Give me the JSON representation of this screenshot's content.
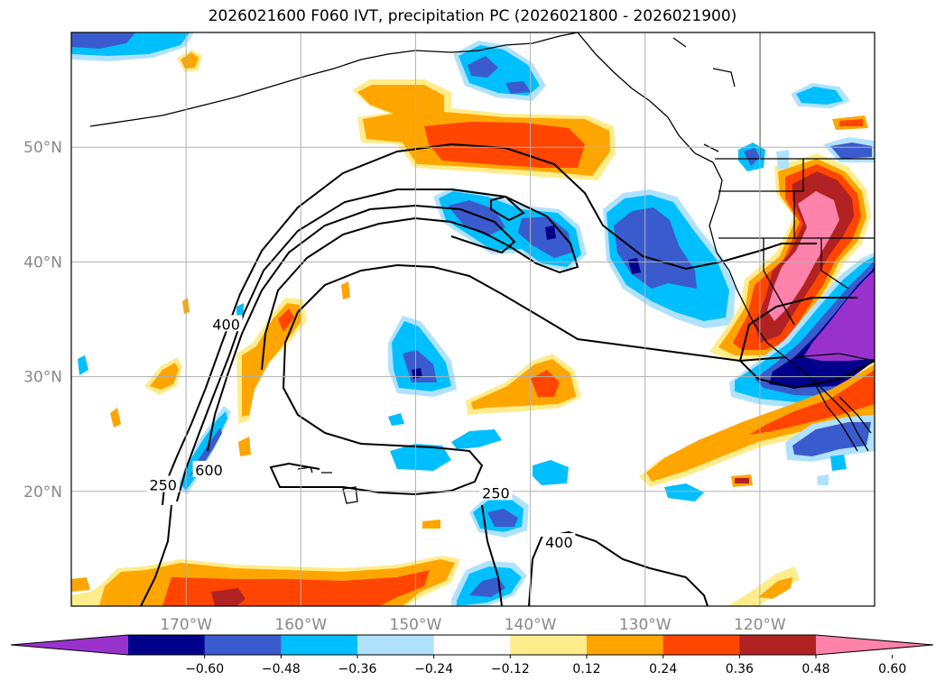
{
  "title": "2026021600 F060 IVT, precipitation PC (2026021800 - 2026021900)",
  "map": {
    "lon_range": [
      -180,
      -110
    ],
    "lat_range": [
      10,
      60
    ],
    "lat_ticks": [
      {
        "value": 50,
        "label": "50°N"
      },
      {
        "value": 40,
        "label": "40°N"
      },
      {
        "value": 30,
        "label": "30°N"
      },
      {
        "value": 20,
        "label": "20°N"
      }
    ],
    "lon_ticks": [
      {
        "value": -170,
        "label": "170°W"
      },
      {
        "value": -160,
        "label": "160°W"
      },
      {
        "value": -150,
        "label": "150°W"
      },
      {
        "value": -140,
        "label": "140°W"
      },
      {
        "value": -130,
        "label": "130°W"
      },
      {
        "value": -120,
        "label": "120°W"
      }
    ],
    "grid": true,
    "contour_labels": [
      {
        "text": "400",
        "lon": -166.5,
        "lat": 34.5
      },
      {
        "text": "250",
        "lon": -172.0,
        "lat": 20.5
      },
      {
        "text": "600",
        "lon": -168.0,
        "lat": 21.8
      },
      {
        "text": "250",
        "lon": -143.0,
        "lat": 19.8
      },
      {
        "text": "400",
        "lon": -137.5,
        "lat": 15.5
      }
    ]
  },
  "colorbar": {
    "colors": [
      "#9932cc",
      "#00008b",
      "#3a5bcd",
      "#00bfff",
      "#b0e2ff",
      "#ffffff",
      "#ffec8b",
      "#ffa500",
      "#ff4500",
      "#b22222",
      "#ff82ab"
    ],
    "labels": [
      "−0.60",
      "−0.48",
      "−0.36",
      "−0.24",
      "−0.12",
      "0.12",
      "0.24",
      "0.36",
      "0.48",
      "0.60"
    ],
    "boundaries": [
      -0.6,
      -0.48,
      -0.36,
      -0.24,
      -0.12,
      0.12,
      0.24,
      0.36,
      0.48,
      0.6
    ],
    "extend": "both"
  },
  "colors": {
    "purple": "#9932cc",
    "darkblue": "#00008b",
    "blue": "#3a5bcd",
    "cyan": "#00bfff",
    "lightblue": "#b0e2ff",
    "yellow": "#ffec8b",
    "orange": "#ffa500",
    "redorange": "#ff4500",
    "darkred": "#b22222",
    "pink": "#ff82ab"
  }
}
